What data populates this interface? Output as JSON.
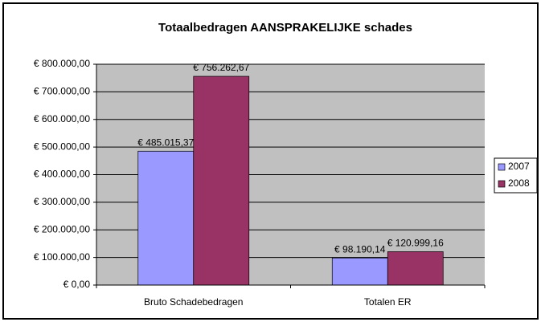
{
  "chart_data": {
    "type": "bar",
    "title": "Totaalbedragen AANSPRAKELIJKE schades",
    "categories": [
      "Bruto Schadebedragen",
      "Totalen ER"
    ],
    "series": [
      {
        "name": "2007",
        "color": "#9999ff",
        "values": [
          485015.37,
          98190.14
        ],
        "value_labels": [
          "€ 485.015,37",
          "€ 98.190,14"
        ]
      },
      {
        "name": "2008",
        "color": "#993366",
        "values": [
          756262.67,
          120999.16
        ],
        "value_labels": [
          "€ 756.262,67",
          "€ 120.999,16"
        ]
      }
    ],
    "ylim": [
      0,
      800000
    ],
    "yticks": [
      {
        "value": 0,
        "label": "€ 0,00"
      },
      {
        "value": 100000,
        "label": "€ 100.000,00"
      },
      {
        "value": 200000,
        "label": "€ 200.000,00"
      },
      {
        "value": 300000,
        "label": "€ 300.000,00"
      },
      {
        "value": 400000,
        "label": "€ 400.000,00"
      },
      {
        "value": 500000,
        "label": "€ 500.000,00"
      },
      {
        "value": 600000,
        "label": "€ 600.000,00"
      },
      {
        "value": 700000,
        "label": "€ 700.000,00"
      },
      {
        "value": 800000,
        "label": "€ 800.000,00"
      }
    ],
    "grid": true,
    "legend": "right",
    "plot_color": "#c0c0c0"
  }
}
